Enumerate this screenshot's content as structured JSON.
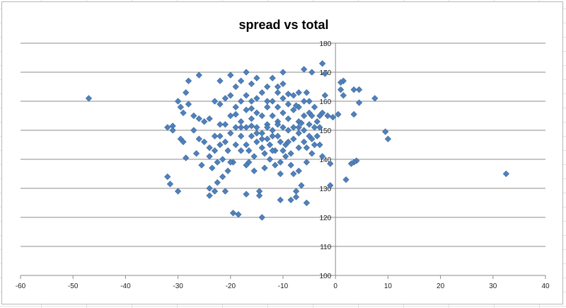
{
  "chart_data": {
    "type": "scatter",
    "title": "spread vs total",
    "xlabel": "",
    "ylabel": "",
    "xlim": [
      -60,
      40
    ],
    "ylim": [
      100,
      180
    ],
    "x_ticks": [
      -60,
      -50,
      -40,
      -30,
      -20,
      -10,
      0,
      10,
      20,
      30,
      40
    ],
    "y_ticks": [
      100,
      110,
      120,
      130,
      140,
      150,
      160,
      170,
      180
    ],
    "grid": {
      "horizontal": true,
      "vertical": false
    },
    "legend": "none",
    "colors": {
      "marker": "#4f81bd",
      "marker_edge": "#3a6595",
      "gridline": "#8c8c8c",
      "axis": "#8c8c8c"
    },
    "series": [
      {
        "points": [
          [
            -47,
            161
          ],
          [
            32.5,
            135
          ],
          [
            10,
            147
          ],
          [
            9.5,
            149.5
          ],
          [
            7.5,
            161
          ],
          [
            4.5,
            164
          ],
          [
            4.5,
            159.5
          ],
          [
            3.5,
            164
          ],
          [
            3.5,
            155.5
          ],
          [
            4,
            139.5
          ],
          [
            3.5,
            139
          ],
          [
            3,
            138.5
          ],
          [
            2,
            133
          ],
          [
            1.5,
            167
          ],
          [
            1,
            166.5
          ],
          [
            1.5,
            162
          ],
          [
            1,
            164
          ],
          [
            0.5,
            155.5
          ],
          [
            -0.5,
            154.5
          ],
          [
            -1,
            131
          ],
          [
            -1,
            138.5
          ],
          [
            -1.5,
            155
          ],
          [
            -2.5,
            173
          ],
          [
            -2,
            169.5
          ],
          [
            -2,
            162
          ],
          [
            -2.5,
            156
          ],
          [
            -3,
            145
          ],
          [
            -2.5,
            141
          ],
          [
            -3,
            151
          ],
          [
            -3.5,
            153
          ],
          [
            -4.5,
            170
          ],
          [
            -4,
            158
          ],
          [
            -4,
            151
          ],
          [
            -4.5,
            147
          ],
          [
            -4.5,
            142
          ],
          [
            -5.5,
            125
          ],
          [
            -5,
            160
          ],
          [
            -5,
            156
          ],
          [
            -5,
            152
          ],
          [
            -5,
            148
          ],
          [
            -5.5,
            144
          ],
          [
            -5.5,
            139
          ],
          [
            -6,
            171
          ],
          [
            -6,
            160
          ],
          [
            -6,
            155
          ],
          [
            -6,
            150
          ],
          [
            -6,
            146
          ],
          [
            -6.5,
            131
          ],
          [
            -7,
            163
          ],
          [
            -7,
            158
          ],
          [
            -7,
            153
          ],
          [
            -7,
            149
          ],
          [
            -7,
            144
          ],
          [
            -7,
            136
          ],
          [
            -7.5,
            127
          ],
          [
            -7.5,
            129
          ],
          [
            -8,
            162
          ],
          [
            -8,
            157
          ],
          [
            -8,
            151
          ],
          [
            -8,
            147
          ],
          [
            -8.5,
            142
          ],
          [
            -8.5,
            138
          ],
          [
            -8.5,
            126
          ],
          [
            -9,
            159
          ],
          [
            -9,
            154
          ],
          [
            -9,
            150
          ],
          [
            -9.5,
            145
          ],
          [
            -9.5,
            141
          ],
          [
            -10,
            170
          ],
          [
            -10,
            166
          ],
          [
            -10,
            161
          ],
          [
            -10,
            156
          ],
          [
            -10,
            151
          ],
          [
            -10.5,
            146
          ],
          [
            -10.5,
            139
          ],
          [
            -10.5,
            135
          ],
          [
            -10.5,
            126
          ],
          [
            -11,
            163
          ],
          [
            -11,
            158
          ],
          [
            -11,
            153
          ],
          [
            -11,
            148
          ],
          [
            -11.5,
            143
          ],
          [
            -11.5,
            138
          ],
          [
            -12,
            168
          ],
          [
            -12,
            160
          ],
          [
            -12,
            155
          ],
          [
            -12,
            150
          ],
          [
            -12.5,
            145
          ],
          [
            -12.5,
            140
          ],
          [
            -13,
            165
          ],
          [
            -13,
            158
          ],
          [
            -13,
            152
          ],
          [
            -13,
            147
          ],
          [
            -13.5,
            142
          ],
          [
            -13.5,
            137
          ],
          [
            -14,
            163
          ],
          [
            -14,
            155
          ],
          [
            -14,
            149
          ],
          [
            -14,
            144
          ],
          [
            -14.5,
            129
          ],
          [
            -14.5,
            127.5
          ],
          [
            -14,
            120
          ],
          [
            -15,
            168
          ],
          [
            -15,
            161
          ],
          [
            -15,
            156
          ],
          [
            -15,
            151
          ],
          [
            -15,
            146
          ],
          [
            -15.5,
            141
          ],
          [
            -15.5,
            136
          ],
          [
            -16,
            166
          ],
          [
            -16,
            160
          ],
          [
            -16,
            154
          ],
          [
            -16,
            148
          ],
          [
            -16.5,
            143
          ],
          [
            -16.5,
            139
          ],
          [
            -17,
            170
          ],
          [
            -17,
            162
          ],
          [
            -17,
            157
          ],
          [
            -17,
            151
          ],
          [
            -17,
            145
          ],
          [
            -17,
            138
          ],
          [
            -17,
            128
          ],
          [
            -18,
            167
          ],
          [
            -18,
            160
          ],
          [
            -18,
            153
          ],
          [
            -18,
            148
          ],
          [
            -18,
            143
          ],
          [
            -18.5,
            121
          ],
          [
            -19,
            165
          ],
          [
            -19,
            158
          ],
          [
            -19,
            151
          ],
          [
            -19,
            145
          ],
          [
            -19.5,
            139
          ],
          [
            -19.5,
            121.5
          ],
          [
            -20,
            169
          ],
          [
            -20,
            162
          ],
          [
            -20,
            155
          ],
          [
            -20,
            149
          ],
          [
            -20.5,
            143
          ],
          [
            -20.5,
            136
          ],
          [
            -21,
            161
          ],
          [
            -21,
            152
          ],
          [
            -21,
            146
          ],
          [
            -21.5,
            140
          ],
          [
            -21.5,
            134
          ],
          [
            -22,
            167
          ],
          [
            -22,
            159
          ],
          [
            -22,
            152
          ],
          [
            -22,
            145
          ],
          [
            -22.5,
            139
          ],
          [
            -22.5,
            132
          ],
          [
            -23,
            160
          ],
          [
            -23,
            148
          ],
          [
            -23,
            143
          ],
          [
            -23,
            129
          ],
          [
            -23.5,
            137
          ],
          [
            -24,
            154
          ],
          [
            -24,
            144
          ],
          [
            -24,
            127.5
          ],
          [
            -24,
            130
          ],
          [
            -25,
            146
          ],
          [
            -25.5,
            138
          ],
          [
            -26,
            169
          ],
          [
            -26,
            154
          ],
          [
            -26.5,
            142
          ],
          [
            -27,
            150
          ],
          [
            -28,
            167
          ],
          [
            -28,
            159
          ],
          [
            -28.5,
            163
          ],
          [
            -28.5,
            140.5
          ],
          [
            -29,
            156
          ],
          [
            -29,
            146
          ],
          [
            -29.5,
            158
          ],
          [
            -29.5,
            147
          ],
          [
            -30,
            160
          ],
          [
            -30,
            129
          ],
          [
            -31,
            151.5
          ],
          [
            -31,
            150
          ],
          [
            -31.5,
            131.5
          ],
          [
            -32,
            151
          ],
          [
            -32,
            134
          ],
          [
            -24,
            141
          ],
          [
            -25,
            153
          ],
          [
            -27,
            155
          ],
          [
            -19,
            155.5
          ],
          [
            -16,
            157.5
          ],
          [
            -11,
            165
          ],
          [
            -9,
            162.5
          ],
          [
            -7.5,
            158.5
          ],
          [
            -3.5,
            148
          ],
          [
            -4.5,
            155
          ],
          [
            -5.5,
            163
          ],
          [
            -13,
            160
          ],
          [
            -12,
            148
          ],
          [
            -8,
            135
          ],
          [
            -10,
            143
          ],
          [
            -15,
            149
          ],
          [
            -18,
            151
          ],
          [
            -20,
            139
          ],
          [
            -22,
            148
          ],
          [
            -26,
            147
          ],
          [
            -21,
            129
          ],
          [
            -14,
            147
          ],
          [
            -12,
            143
          ],
          [
            -9,
            146
          ],
          [
            -6.5,
            152.5
          ],
          [
            -3,
            155
          ],
          [
            -4,
            145
          ],
          [
            -16,
            151.5
          ],
          [
            -13,
            151
          ],
          [
            -11,
            152
          ],
          [
            -7,
            151
          ]
        ]
      }
    ]
  }
}
